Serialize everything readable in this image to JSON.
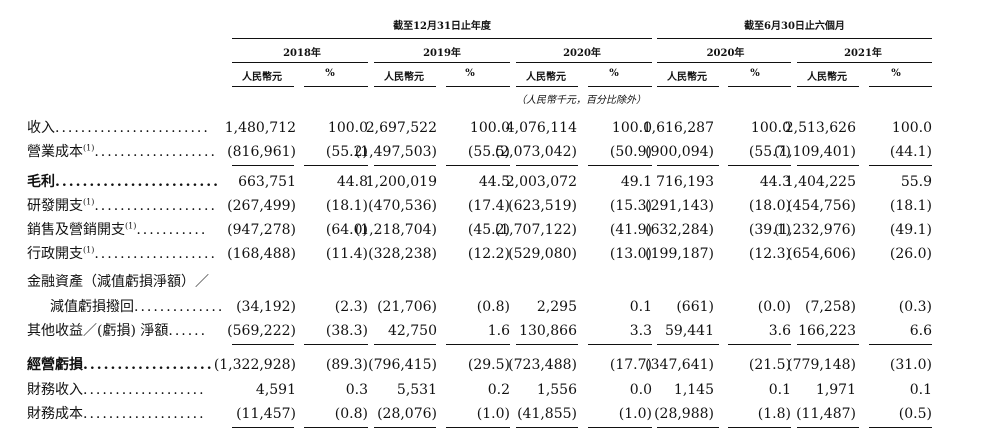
{
  "header": {
    "group_years": "截至12月31日止年度",
    "group_halfyear": "截至6月30日止六個月",
    "years": [
      "2018年",
      "2019年",
      "2020年",
      "2020年",
      "2021年"
    ],
    "col_rmb": "人民幣元",
    "col_pct": "%",
    "note": "（人民幣千元，百分比除外）"
  },
  "rows": [
    {
      "label": "收入",
      "sup": "",
      "dots": "........................",
      "bold": false,
      "indent": false,
      "values": [
        "1,480,712",
        "100.0",
        "2,697,522",
        "100.0",
        "4,076,114",
        "100.0",
        "1,616,287",
        "100.0",
        "2,513,626",
        "100.0"
      ],
      "underline": false
    },
    {
      "label": "營業成本",
      "sup": "(1)",
      "dots": "...................",
      "bold": false,
      "indent": false,
      "values": [
        "(816,961)",
        "(55.2)",
        "(1,497,503)",
        "(55.5)",
        "(2,073,042)",
        "(50.9)",
        "(900,094)",
        "(55.7)",
        "(1,109,401)",
        "(44.1)"
      ],
      "underline": true
    },
    {
      "label": "毛利",
      "sup": "",
      "dots": "........................",
      "bold": true,
      "indent": false,
      "values": [
        "663,751",
        "44.8",
        "1,200,019",
        "44.5",
        "2,003,072",
        "49.1",
        "716,193",
        "44.3",
        "1,404,225",
        "55.9"
      ],
      "underline": false
    },
    {
      "label": "研發開支",
      "sup": "(1)",
      "dots": "...................",
      "bold": false,
      "indent": false,
      "values": [
        "(267,499)",
        "(18.1)",
        "(470,536)",
        "(17.4)",
        "(623,519)",
        "(15.3)",
        "(291,143)",
        "(18.0)",
        "(454,756)",
        "(18.1)"
      ],
      "underline": false
    },
    {
      "label": "銷售及營銷開支",
      "sup": "(1)",
      "dots": "...........",
      "bold": false,
      "indent": false,
      "values": [
        "(947,278)",
        "(64.0)",
        "(1,218,704)",
        "(45.2)",
        "(1,707,122)",
        "(41.9)",
        "(632,284)",
        "(39.1)",
        "(1,232,976)",
        "(49.1)"
      ],
      "underline": false
    },
    {
      "label": "行政開支",
      "sup": "(1)",
      "dots": "...................",
      "bold": false,
      "indent": false,
      "values": [
        "(168,488)",
        "(11.4)",
        "(328,238)",
        "(12.2)",
        "(529,080)",
        "(13.0)",
        "(199,187)",
        "(12.3)",
        "(654,606)",
        "(26.0)"
      ],
      "underline": false
    },
    {
      "label": "金融資產（減值虧損淨額）／",
      "sup": "",
      "dots": "",
      "bold": false,
      "indent": false,
      "values": [
        "",
        "",
        "",
        "",
        "",
        "",
        "",
        "",
        "",
        ""
      ],
      "underline": false
    },
    {
      "label": "減值虧損撥回",
      "sup": "",
      "dots": "..............",
      "bold": false,
      "indent": true,
      "values": [
        "(34,192)",
        "(2.3)",
        "(21,706)",
        "(0.8)",
        "2,295",
        "0.1",
        "(661)",
        "(0.0)",
        "(7,258)",
        "(0.3)"
      ],
      "underline": false
    },
    {
      "label": "其他收益／(虧損) 淨額",
      "sup": "",
      "dots": "......",
      "bold": false,
      "indent": false,
      "values": [
        "(569,222)",
        "(38.3)",
        "42,750",
        "1.6",
        "130,866",
        "3.3",
        "59,441",
        "3.6",
        "166,223",
        "6.6"
      ],
      "underline": true
    },
    {
      "label": "經營虧損",
      "sup": "",
      "dots": "...................",
      "bold": true,
      "indent": false,
      "values": [
        "(1,322,928)",
        "(89.3)",
        "(796,415)",
        "(29.5)",
        "(723,488)",
        "(17.7)",
        "(347,641)",
        "(21.5)",
        "(779,148)",
        "(31.0)"
      ],
      "underline": false
    },
    {
      "label": "財務收入",
      "sup": "",
      "dots": "...................",
      "bold": false,
      "indent": false,
      "values": [
        "4,591",
        "0.3",
        "5,531",
        "0.2",
        "1,556",
        "0.0",
        "1,145",
        "0.1",
        "1,971",
        "0.1"
      ],
      "underline": false
    },
    {
      "label": "財務成本",
      "sup": "",
      "dots": "...................",
      "bold": false,
      "indent": false,
      "values": [
        "(11,457)",
        "(0.8)",
        "(28,076)",
        "(1.0)",
        "(41,855)",
        "(1.0)",
        "(28,988)",
        "(1.8)",
        "(11,487)",
        "(0.5)"
      ],
      "underline": true
    }
  ]
}
